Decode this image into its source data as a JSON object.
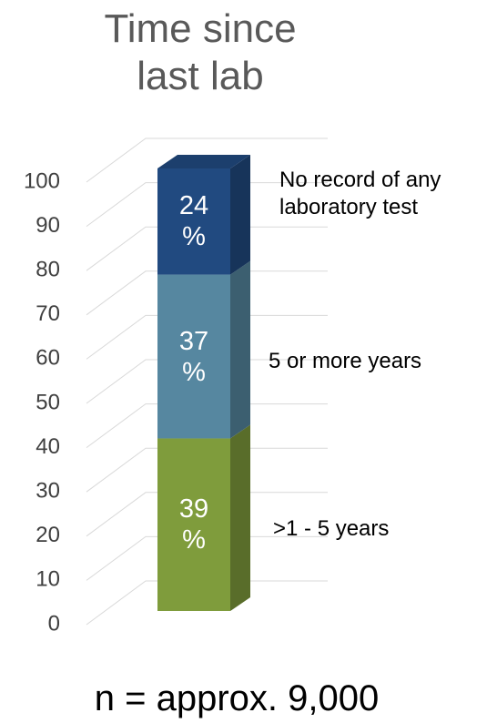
{
  "chart_data": {
    "type": "stacked_bar_3d",
    "title": "Time since last lab",
    "categories": [
      null
    ],
    "series": [
      {
        "name": ">1 - 5 years",
        "color": "#7f9c3c",
        "values": [
          39
        ],
        "value_labels": [
          "39 %"
        ]
      },
      {
        "name": "5 or more years",
        "color": "#5687a0",
        "values": [
          37
        ],
        "value_labels": [
          "37 %"
        ]
      },
      {
        "name": "No record of any laboratory test",
        "color": "#214a80",
        "values": [
          24
        ],
        "value_labels": [
          "24 %"
        ]
      }
    ],
    "ylim": [
      0,
      100
    ],
    "yticks": [
      0,
      10,
      20,
      30,
      40,
      50,
      60,
      70,
      80,
      90,
      100
    ],
    "grid": true,
    "footnote": "n = approx. 9,000"
  }
}
